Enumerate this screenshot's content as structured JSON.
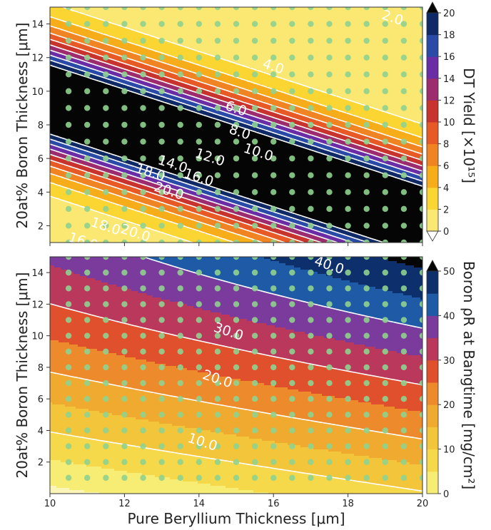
{
  "chart_data": [
    {
      "type": "contour",
      "panel": "top",
      "xlabel": "",
      "ylabel": "20at% Boron Thickness [μm]",
      "xlim": [
        10,
        20
      ],
      "ylim": [
        1,
        15
      ],
      "x_ticks": [
        "10",
        "12",
        "14",
        "16",
        "18",
        "20"
      ],
      "y_ticks": [
        "2",
        "4",
        "6",
        "8",
        "10",
        "12",
        "14"
      ],
      "colorbar_label": "DT Yield [×10¹⁵]",
      "colorbar_ticks": [
        "0",
        "2",
        "4",
        "6",
        "8",
        "10",
        "12",
        "14",
        "16",
        "18",
        "20"
      ],
      "colorbar_extend": "both",
      "levels": [
        0,
        2,
        4,
        6,
        8,
        10,
        12,
        14,
        16,
        18,
        20
      ],
      "level_colors": [
        "#fff8c0",
        "#fbe872",
        "#fbd532",
        "#f7ad1a",
        "#f08422",
        "#e75a26",
        "#c8342d",
        "#9c2c6e",
        "#6a2da6",
        "#2a4aa8",
        "#0f2a66",
        "#050505"
      ],
      "field_model": "yield = 28 * exp(-0.32*(B - 9.5 + 0.72*(Be - 10))^2 / 4)",
      "contour_lines": [
        2,
        4,
        6,
        8,
        10,
        12,
        14,
        16,
        18,
        20
      ],
      "contour_labels": [
        {
          "text": "2.0",
          "x": 19.2,
          "y": 14.4
        },
        {
          "text": "4.0",
          "x": 16.0,
          "y": 11.5
        },
        {
          "text": "6.0",
          "x": 15.0,
          "y": 9.0
        },
        {
          "text": "8.0",
          "x": 15.1,
          "y": 7.6
        },
        {
          "text": "10.0",
          "x": 15.6,
          "y": 6.4
        },
        {
          "text": "12.0",
          "x": 14.3,
          "y": 6.1
        },
        {
          "text": "14.0",
          "x": 13.3,
          "y": 5.7
        },
        {
          "text": "16.0",
          "x": 14.0,
          "y": 4.9
        },
        {
          "text": "18.0",
          "x": 12.7,
          "y": 5.2
        },
        {
          "text": "20.0",
          "x": 13.2,
          "y": 4.1
        },
        {
          "text": "18.0",
          "x": 11.5,
          "y": 2.0
        },
        {
          "text": "20.0",
          "x": 12.3,
          "y": 1.6
        },
        {
          "text": "16.0",
          "x": 10.9,
          "y": 1.1
        }
      ],
      "sample_points": {
        "x": [
          10.5,
          11.0,
          11.5,
          12.0,
          12.5,
          13.0,
          13.5,
          14.0,
          14.5,
          15.0,
          15.5,
          16.0,
          16.5,
          17.0,
          17.5,
          18.0,
          18.5,
          19.0,
          19.5,
          20.0
        ],
        "y": [
          1,
          2,
          3,
          4,
          5,
          6,
          7,
          8,
          9,
          10,
          11,
          12,
          13,
          14,
          15
        ]
      }
    },
    {
      "type": "contour",
      "panel": "bottom",
      "xlabel": "Pure Beryllium Thickness [μm]",
      "ylabel": "20at% Boron Thickness [μm]",
      "xlim": [
        10,
        20
      ],
      "ylim": [
        0,
        15
      ],
      "x_ticks": [
        "10",
        "12",
        "14",
        "16",
        "18",
        "20"
      ],
      "y_ticks": [
        "2",
        "4",
        "6",
        "8",
        "10",
        "12",
        "14"
      ],
      "colorbar_label": "Boron ρR at Bangtime [mg/cm²]",
      "colorbar_ticks": [
        "0",
        "10",
        "20",
        "30",
        "40",
        "50"
      ],
      "colorbar_extend": "max",
      "levels": [
        0,
        5,
        10,
        15,
        20,
        25,
        30,
        35,
        40,
        45,
        50
      ],
      "level_colors": [
        "#fbf6b8",
        "#f7ec74",
        "#f6d94a",
        "#f3c53a",
        "#f0aa30",
        "#ec8a2c",
        "#e0502d",
        "#b9385c",
        "#7a3b9c",
        "#1f5aa6",
        "#0d2f6c",
        "#050505"
      ],
      "field_model": "rhoR = 3.1*B - 0.04*B^2 + 1.1*(Be - 10) + 0.022*(Be - 10)*B^2/10 - 1.5",
      "contour_lines": [
        10,
        20,
        30,
        40
      ],
      "contour_labels": [
        {
          "text": "40.0",
          "x": 17.5,
          "y": 14.5
        },
        {
          "text": "30.0",
          "x": 14.8,
          "y": 10.3
        },
        {
          "text": "20.0",
          "x": 14.5,
          "y": 7.3
        },
        {
          "text": "10.0",
          "x": 14.1,
          "y": 3.3
        }
      ],
      "sample_points": {
        "x": [
          10.5,
          11.0,
          11.5,
          12.0,
          12.5,
          13.0,
          13.5,
          14.0,
          14.5,
          15.0,
          15.5,
          16.0,
          16.5,
          17.0,
          17.5,
          18.0,
          18.5,
          19.0,
          19.5,
          20.0
        ],
        "y": [
          1,
          2,
          3,
          4,
          5,
          6,
          7,
          8,
          9,
          10,
          11,
          12,
          13,
          14,
          15
        ]
      }
    }
  ]
}
